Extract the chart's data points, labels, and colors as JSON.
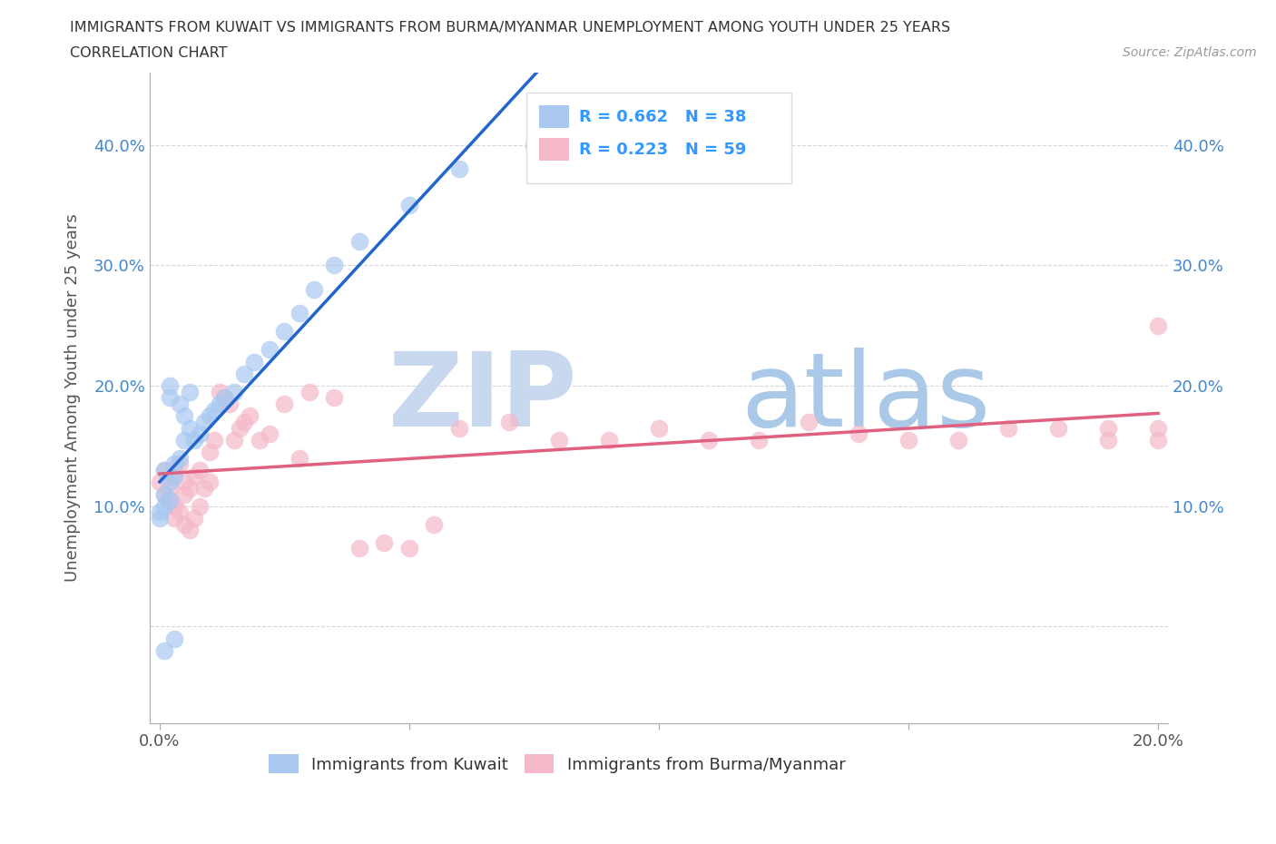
{
  "title_line1": "IMMIGRANTS FROM KUWAIT VS IMMIGRANTS FROM BURMA/MYANMAR UNEMPLOYMENT AMONG YOUTH UNDER 25 YEARS",
  "title_line2": "CORRELATION CHART",
  "source": "Source: ZipAtlas.com",
  "ylabel": "Unemployment Among Youth under 25 years",
  "kuwait_R": 0.662,
  "kuwait_N": 38,
  "burma_R": 0.223,
  "burma_N": 59,
  "kuwait_color": "#a8c8f0",
  "burma_color": "#f5b8c8",
  "kuwait_line_color": "#2266cc",
  "burma_line_color": "#e06080",
  "watermark_zip_color": "#c8d8ee",
  "watermark_atlas_color": "#aac8e8",
  "background_color": "#ffffff",
  "xlim": [
    -0.002,
    0.202
  ],
  "ylim": [
    -0.08,
    0.46
  ],
  "xtick_vals": [
    0.0,
    0.05,
    0.1,
    0.15,
    0.2
  ],
  "xtick_labels": [
    "0.0%",
    "",
    "",
    "",
    "20.0%"
  ],
  "ytick_vals": [
    0.0,
    0.1,
    0.2,
    0.3,
    0.4
  ],
  "ytick_labels_left": [
    "",
    "10.0%",
    "20.0%",
    "30.0%",
    "40.0%"
  ],
  "ytick_labels_right": [
    "",
    "10.0%",
    "20.0%",
    "30.0%",
    "40.0%"
  ],
  "kuwait_x": [
    0.0,
    0.0,
    0.001,
    0.001,
    0.001,
    0.001,
    0.002,
    0.002,
    0.002,
    0.002,
    0.003,
    0.003,
    0.003,
    0.004,
    0.004,
    0.005,
    0.005,
    0.006,
    0.006,
    0.007,
    0.008,
    0.009,
    0.01,
    0.011,
    0.012,
    0.013,
    0.015,
    0.017,
    0.019,
    0.022,
    0.025,
    0.028,
    0.031,
    0.035,
    0.04,
    0.05,
    0.06,
    0.075
  ],
  "kuwait_y": [
    0.09,
    0.095,
    0.1,
    0.11,
    0.13,
    -0.02,
    0.105,
    0.12,
    0.2,
    0.19,
    0.125,
    0.135,
    -0.01,
    0.14,
    0.185,
    0.155,
    0.175,
    0.165,
    0.195,
    0.155,
    0.16,
    0.17,
    0.175,
    0.18,
    0.185,
    0.19,
    0.195,
    0.21,
    0.22,
    0.23,
    0.245,
    0.26,
    0.28,
    0.3,
    0.32,
    0.35,
    0.38,
    0.4
  ],
  "burma_x": [
    0.0,
    0.001,
    0.001,
    0.002,
    0.002,
    0.002,
    0.003,
    0.003,
    0.003,
    0.004,
    0.004,
    0.005,
    0.005,
    0.005,
    0.006,
    0.006,
    0.007,
    0.007,
    0.008,
    0.008,
    0.009,
    0.01,
    0.01,
    0.011,
    0.012,
    0.013,
    0.014,
    0.015,
    0.016,
    0.017,
    0.018,
    0.02,
    0.022,
    0.025,
    0.028,
    0.03,
    0.035,
    0.04,
    0.045,
    0.05,
    0.055,
    0.06,
    0.07,
    0.08,
    0.09,
    0.1,
    0.11,
    0.12,
    0.13,
    0.14,
    0.15,
    0.16,
    0.17,
    0.18,
    0.19,
    0.19,
    0.2,
    0.2,
    0.2
  ],
  "burma_y": [
    0.12,
    0.11,
    0.13,
    0.105,
    0.115,
    0.125,
    0.09,
    0.1,
    0.13,
    0.095,
    0.135,
    0.085,
    0.11,
    0.12,
    0.08,
    0.115,
    0.09,
    0.125,
    0.1,
    0.13,
    0.115,
    0.145,
    0.12,
    0.155,
    0.195,
    0.19,
    0.185,
    0.155,
    0.165,
    0.17,
    0.175,
    0.155,
    0.16,
    0.185,
    0.14,
    0.195,
    0.19,
    0.065,
    0.07,
    0.065,
    0.085,
    0.165,
    0.17,
    0.155,
    0.155,
    0.165,
    0.155,
    0.155,
    0.17,
    0.16,
    0.155,
    0.155,
    0.165,
    0.165,
    0.155,
    0.165,
    0.165,
    0.155,
    0.25
  ]
}
